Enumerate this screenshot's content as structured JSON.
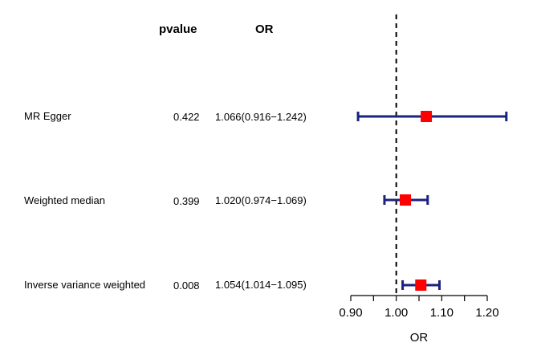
{
  "header": {
    "pvalue_label": "pvalue",
    "or_label": "OR"
  },
  "rows": [
    {
      "label": "MR Egger",
      "pvalue": "0.422",
      "or_text": "1.066(0.916−1.242)"
    },
    {
      "label": "Weighted median",
      "pvalue": "0.399",
      "or_text": "1.020(0.974−1.069)"
    },
    {
      "label": "Inverse variance weighted",
      "pvalue": "0.008",
      "or_text": "1.054(1.014−1.095)"
    }
  ],
  "chart_data": {
    "type": "forest",
    "xlabel": "OR",
    "xlim": [
      0.9,
      1.245
    ],
    "xticks": [
      0.9,
      0.95,
      1.0,
      1.05,
      1.1,
      1.15,
      1.2
    ],
    "xtick_labels": [
      "0.90",
      "",
      "1.00",
      "",
      "1.10",
      "",
      "1.20"
    ],
    "reference_line": 1.0,
    "series": [
      {
        "or": 1.066,
        "lower": 0.916,
        "upper": 1.242
      },
      {
        "or": 1.02,
        "lower": 0.974,
        "upper": 1.069
      },
      {
        "or": 1.054,
        "lower": 1.014,
        "upper": 1.095
      }
    ],
    "colors": {
      "ci": "#1a237e",
      "point": "#ff0000",
      "refline": "#000000"
    }
  }
}
